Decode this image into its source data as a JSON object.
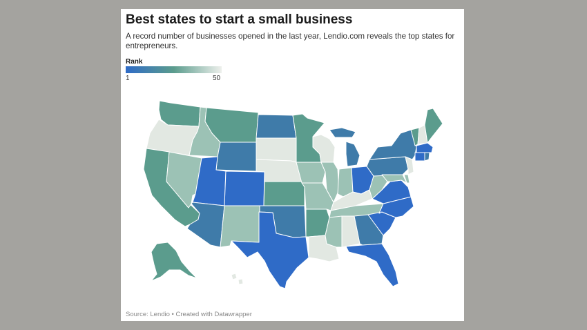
{
  "chart": {
    "title": "Best states to start a small business",
    "subtitle": "A record number of businesses opened in the last year, Lendio.com reveals the top states for entrepreneurs.",
    "legend_title": "Rank",
    "legend_min": "1",
    "legend_max": "50",
    "source": "Source: Lendio • Created with Datawrapper"
  },
  "colors": {
    "rank_1": "#2f6bc7",
    "rank_mid": "#5b9c8d",
    "rank_50": "#eef0ec",
    "page_background": "#a4a39f",
    "card_background": "#ffffff"
  },
  "chart_data": {
    "type": "choropleth",
    "title": "Best states to start a small business",
    "legend": "Rank",
    "scale": [
      1,
      50
    ],
    "estimated_shade_by_state": {
      "WA": "mid-green",
      "OR": "very light",
      "CA": "mid-green",
      "NV": "light green",
      "ID": "light green",
      "MT": "mid-green",
      "WY": "blue-teal",
      "UT": "blue",
      "AZ": "blue-teal",
      "CO": "blue",
      "NM": "light green",
      "ND": "blue-teal",
      "SD": "very light",
      "NE": "very light",
      "KS": "mid-green",
      "OK": "blue-teal",
      "TX": "blue",
      "MN": "mid-green",
      "IA": "light green",
      "MO": "light green",
      "AR": "mid-green",
      "LA": "very light",
      "WI": "very light",
      "IL": "light green",
      "MI": "blue-teal",
      "IN": "light green",
      "OH": "blue",
      "KY": "very light",
      "TN": "light green",
      "MS": "light green",
      "AL": "very light",
      "GA": "blue-teal",
      "FL": "blue",
      "SC": "blue",
      "NC": "blue",
      "VA": "blue",
      "WV": "light green",
      "PA": "blue-teal",
      "NY": "blue-teal",
      "VT": "mid-green",
      "NH": "very light",
      "ME": "mid-green",
      "MA": "blue",
      "CT": "blue",
      "RI": "blue-teal",
      "NJ": "very light",
      "DE": "light green",
      "MD": "light green",
      "AK": "mid-green",
      "HI": "very light"
    }
  }
}
